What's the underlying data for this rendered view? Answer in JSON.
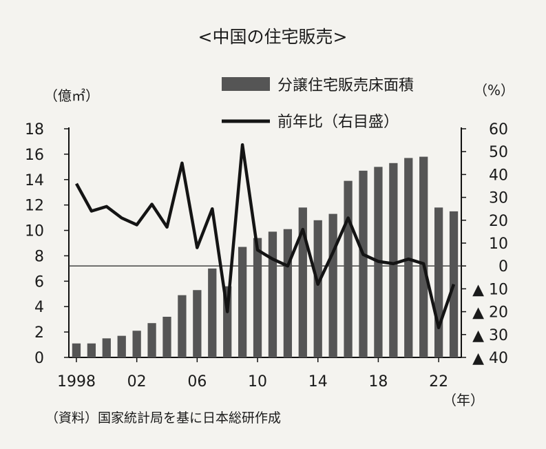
{
  "title": "<中国の住宅販売>",
  "source": "（資料）国家統計局を基に日本総研作成",
  "chart_data": {
    "type": "bar",
    "x_unit": "（年）",
    "left_axis": {
      "unit": "（億㎡）",
      "min": 0,
      "max": 18,
      "ticks": [
        0,
        2,
        4,
        6,
        8,
        10,
        12,
        14,
        16,
        18
      ]
    },
    "right_axis": {
      "unit": "（%）",
      "min": -40,
      "max": 60,
      "ticks": [
        {
          "value": 60,
          "label": "60"
        },
        {
          "value": 50,
          "label": "50"
        },
        {
          "value": 40,
          "label": "40"
        },
        {
          "value": 30,
          "label": "30"
        },
        {
          "value": 20,
          "label": "20"
        },
        {
          "value": 10,
          "label": "10"
        },
        {
          "value": 0,
          "label": "0"
        },
        {
          "value": -10,
          "label": "▲ 10"
        },
        {
          "value": -20,
          "label": "▲ 20"
        },
        {
          "value": -30,
          "label": "▲ 30"
        },
        {
          "value": -40,
          "label": "▲ 40"
        }
      ]
    },
    "x_tick_labels": [
      {
        "year": 1998,
        "label": "1998"
      },
      {
        "year": 2002,
        "label": "02"
      },
      {
        "year": 2006,
        "label": "06"
      },
      {
        "year": 2010,
        "label": "10"
      },
      {
        "year": 2014,
        "label": "14"
      },
      {
        "year": 2018,
        "label": "18"
      },
      {
        "year": 2022,
        "label": "22"
      }
    ],
    "years": [
      1998,
      1999,
      2000,
      2001,
      2002,
      2003,
      2004,
      2005,
      2006,
      2007,
      2008,
      2009,
      2010,
      2011,
      2012,
      2013,
      2014,
      2015,
      2016,
      2017,
      2018,
      2019,
      2020,
      2021,
      2022,
      2023
    ],
    "series": [
      {
        "name": "分譲住宅販売床面積",
        "kind": "bar",
        "axis": "left",
        "color": "#555555",
        "values": [
          1.1,
          1.1,
          1.5,
          1.7,
          2.1,
          2.7,
          3.2,
          4.9,
          5.3,
          7.0,
          5.6,
          8.7,
          9.4,
          9.9,
          10.1,
          11.8,
          10.8,
          11.3,
          13.9,
          14.7,
          15.0,
          15.3,
          15.7,
          15.8,
          11.8,
          11.5
        ]
      },
      {
        "name": "前年比（右目盛）",
        "kind": "line",
        "axis": "right",
        "color": "#141414",
        "values": [
          36,
          24,
          26,
          21,
          18,
          27,
          17,
          45,
          8,
          25,
          -20,
          53,
          7,
          3,
          0,
          16,
          -8,
          6,
          21,
          5,
          2,
          1,
          3,
          1,
          -27,
          -8
        ]
      }
    ]
  }
}
